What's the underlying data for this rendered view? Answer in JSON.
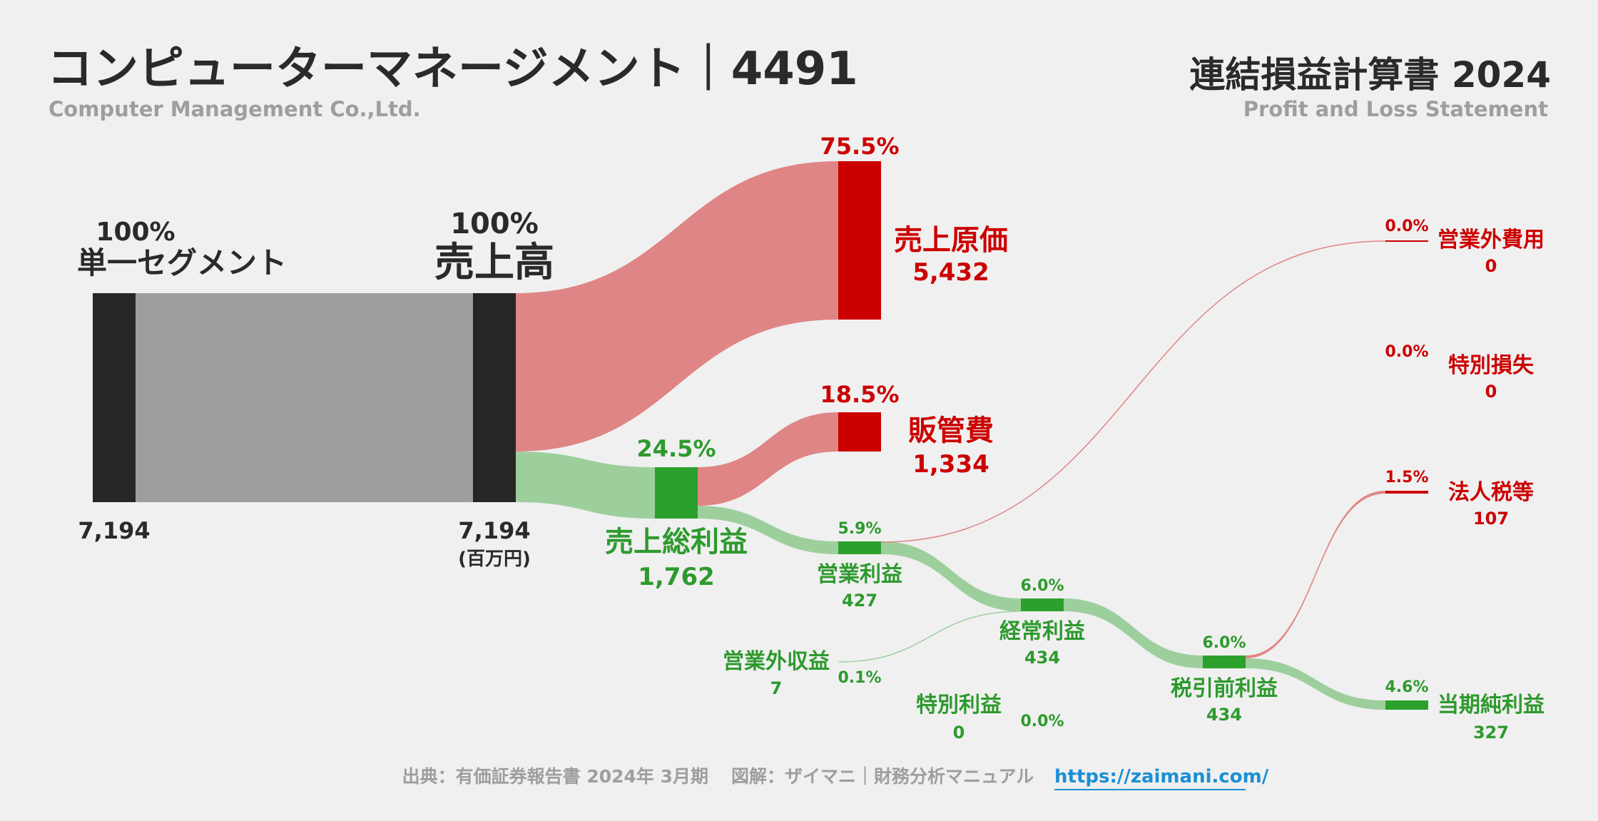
{
  "header": {
    "title": "コンピューターマネージメント｜4491",
    "subtitle": "Computer Management Co.,Ltd.",
    "statement_title": "連結損益計算書 2024",
    "statement_subtitle": "Profit and Loss Statement"
  },
  "unit": "(百万円)",
  "colors": {
    "neutral_node": "#262626",
    "neutral_flow": "#9e9e9e",
    "cost_node": "#cc0000",
    "cost_flow": "#e08585",
    "profit_node": "#2ca02c",
    "profit_flow": "#9dcf9d"
  },
  "chart_data": {
    "type": "sankey",
    "nodes": [
      {
        "id": "segment",
        "label": "単一セグメント",
        "value": "7,194",
        "pct": "100%"
      },
      {
        "id": "revenue",
        "label": "売上高",
        "value": "7,194",
        "pct": "100%"
      },
      {
        "id": "cogs",
        "label": "売上原価",
        "value": "5,432",
        "pct": "75.5%"
      },
      {
        "id": "gross",
        "label": "売上総利益",
        "value": "1,762",
        "pct": "24.5%"
      },
      {
        "id": "sga",
        "label": "販管費",
        "value": "1,334",
        "pct": "18.5%"
      },
      {
        "id": "op",
        "label": "営業利益",
        "value": "427",
        "pct": "5.9%"
      },
      {
        "id": "nonop_inc",
        "label": "営業外収益",
        "value": "7",
        "pct": "0.1%"
      },
      {
        "id": "nonop_exp",
        "label": "営業外費用",
        "value": "0",
        "pct": "0.0%"
      },
      {
        "id": "ordinary",
        "label": "経常利益",
        "value": "434",
        "pct": "6.0%"
      },
      {
        "id": "sp_gain",
        "label": "特別利益",
        "value": "0",
        "pct": "0.0%"
      },
      {
        "id": "sp_loss",
        "label": "特別損失",
        "value": "0",
        "pct": "0.0%"
      },
      {
        "id": "pretax",
        "label": "税引前利益",
        "value": "434",
        "pct": "6.0%"
      },
      {
        "id": "tax",
        "label": "法人税等",
        "value": "107",
        "pct": "1.5%"
      },
      {
        "id": "net",
        "label": "当期純利益",
        "value": "327",
        "pct": "4.6%"
      }
    ],
    "links": [
      {
        "source": "segment",
        "target": "revenue",
        "value": 7194
      },
      {
        "source": "revenue",
        "target": "cogs",
        "value": 5432
      },
      {
        "source": "revenue",
        "target": "gross",
        "value": 1762
      },
      {
        "source": "gross",
        "target": "sga",
        "value": 1334
      },
      {
        "source": "gross",
        "target": "op",
        "value": 427
      },
      {
        "source": "op",
        "target": "ordinary",
        "value": 427
      },
      {
        "source": "op",
        "target": "nonop_exp",
        "value": 0
      },
      {
        "source": "nonop_inc",
        "target": "ordinary",
        "value": 7
      },
      {
        "source": "ordinary",
        "target": "pretax",
        "value": 434
      },
      {
        "source": "pretax",
        "target": "tax",
        "value": 107
      },
      {
        "source": "pretax",
        "target": "net",
        "value": 327
      }
    ]
  },
  "footer": {
    "source": "出典：有価証券報告書 2024年 3月期",
    "credit": "図解：ザイマニ｜財務分析マニュアル",
    "link": "https://zaimani.com/"
  }
}
